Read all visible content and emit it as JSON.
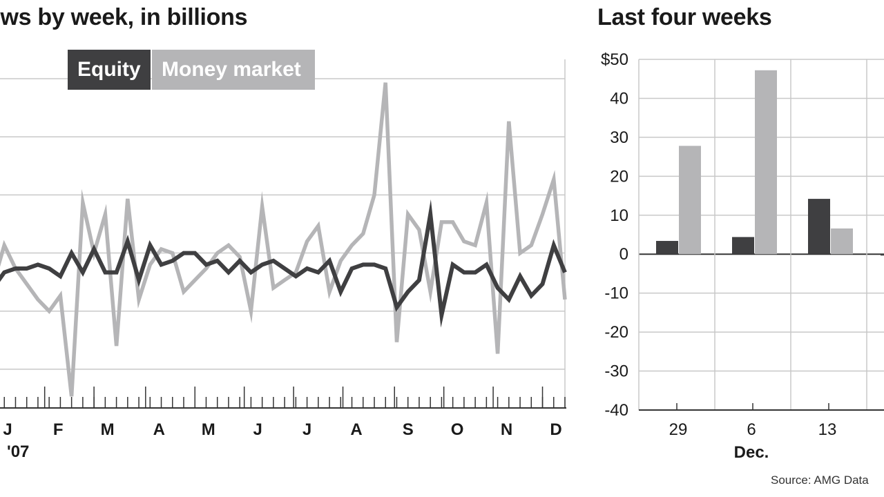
{
  "chart_data": [
    {
      "type": "line",
      "title": "Flows by week, in billions",
      "visible_title": "ows by week, in billions",
      "xlabel": "",
      "ylabel": "",
      "ylim": [
        -40,
        50
      ],
      "grid": true,
      "legend": [
        "Equity",
        "Money market"
      ],
      "legend_position": "top-left",
      "month_labels": [
        "J",
        "F",
        "M",
        "A",
        "M",
        "J",
        "J",
        "A",
        "S",
        "O",
        "N",
        "D"
      ],
      "year_label": "'07",
      "series": [
        {
          "name": "Money market",
          "color": "#b5b5b7",
          "values": [
            -8,
            2,
            -4,
            -8,
            -12,
            -15,
            -11,
            -37,
            13,
            0,
            10,
            -24,
            14,
            -12,
            -3,
            1,
            0,
            -10,
            -7,
            -4,
            0,
            2,
            -1,
            -15,
            12,
            -9,
            -7,
            -5,
            3,
            7,
            -10,
            -2,
            2,
            5,
            15,
            44,
            -23,
            10,
            6,
            -10,
            8,
            8,
            3,
            2,
            13,
            -26,
            34,
            0,
            2,
            10,
            19,
            -12
          ],
          "x": [
            0,
            1,
            2,
            3,
            4,
            5,
            6,
            7,
            8,
            9,
            10,
            11,
            12,
            13,
            14,
            15,
            16,
            17,
            18,
            19,
            20,
            21,
            22,
            23,
            24,
            25,
            26,
            27,
            28,
            29,
            30,
            31,
            32,
            33,
            34,
            35,
            36,
            37,
            38,
            39,
            40,
            41,
            42,
            43,
            44,
            45,
            46,
            47,
            48,
            49,
            50,
            51
          ]
        },
        {
          "name": "Equity",
          "color": "#3f3f41",
          "values": [
            -9,
            -5,
            -4,
            -4,
            -3,
            -4,
            -6,
            0,
            -5,
            1,
            -5,
            -5,
            3,
            -7,
            2,
            -3,
            -2,
            0,
            0,
            -3,
            -2,
            -5,
            -2,
            -5,
            -3,
            -2,
            -4,
            -6,
            -4,
            -5,
            -2,
            -10,
            -4,
            -3,
            -3,
            -4,
            -14,
            -10,
            -7,
            10,
            -16,
            -3,
            -5,
            -5,
            -3,
            -9,
            -12,
            -6,
            -11,
            -8,
            2,
            -5
          ],
          "x": [
            0,
            1,
            2,
            3,
            4,
            5,
            6,
            7,
            8,
            9,
            10,
            11,
            12,
            13,
            14,
            15,
            16,
            17,
            18,
            19,
            20,
            21,
            22,
            23,
            24,
            25,
            26,
            27,
            28,
            29,
            30,
            31,
            32,
            33,
            34,
            35,
            36,
            37,
            38,
            39,
            40,
            41,
            42,
            43,
            44,
            45,
            46,
            47,
            48,
            49,
            50,
            51
          ]
        }
      ]
    },
    {
      "type": "bar",
      "title": "Last four weeks",
      "categories": [
        "29",
        "6",
        "13",
        ""
      ],
      "group_label": "Dec.",
      "ylim": [
        -40,
        50
      ],
      "yticks": [
        50,
        40,
        30,
        20,
        10,
        0,
        -10,
        -20,
        -30,
        -40
      ],
      "ytick_labels": [
        "$50",
        "40",
        "30",
        "20",
        "10",
        "0",
        "-10",
        "-20",
        "-30",
        "-40"
      ],
      "grid": true,
      "series": [
        {
          "name": "Equity",
          "color": "#3f3f41",
          "values": [
            3.4,
            4.4,
            14.2,
            -0.2
          ]
        },
        {
          "name": "Money market",
          "color": "#b5b5b7",
          "values": [
            27.8,
            47.2,
            6.6,
            null
          ]
        }
      ]
    }
  ],
  "labels": {
    "left_title": "ows by week, in billions",
    "right_title": "Last four weeks",
    "legend_equity": "Equity",
    "legend_money": "Money market",
    "source": "Source: AMG Data"
  }
}
